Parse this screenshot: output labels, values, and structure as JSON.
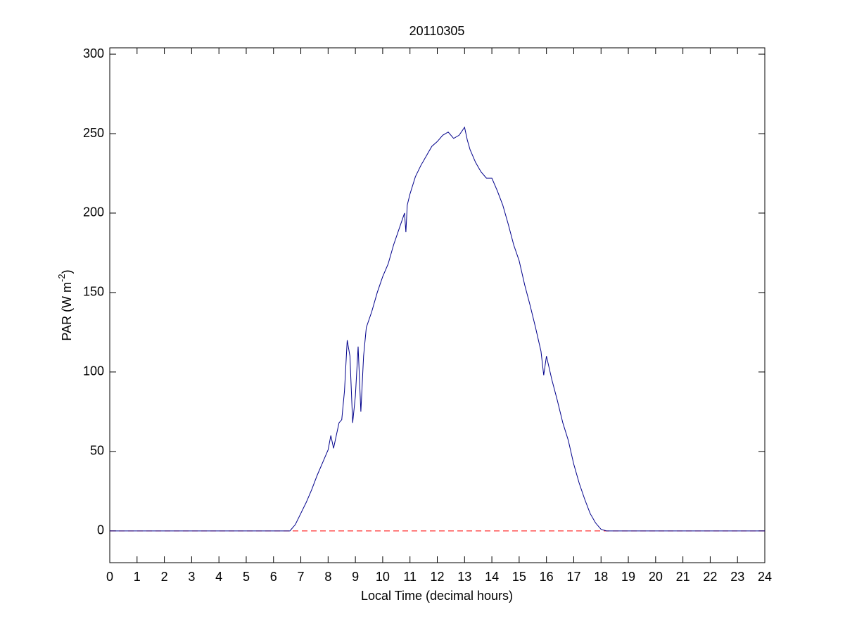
{
  "chart_data": {
    "type": "line",
    "title": "20110305",
    "xlabel": "Local Time (decimal hours)",
    "ylabel": {
      "text": "PAR (W m",
      "superscript": "-2",
      "suffix": ")"
    },
    "x": [
      0,
      6.4,
      6.6,
      6.8,
      7.0,
      7.2,
      7.4,
      7.6,
      7.8,
      8.0,
      8.1,
      8.2,
      8.3,
      8.4,
      8.5,
      8.6,
      8.7,
      8.8,
      8.9,
      9.0,
      9.1,
      9.2,
      9.3,
      9.4,
      9.6,
      9.8,
      10.0,
      10.2,
      10.4,
      10.6,
      10.8,
      10.85,
      10.9,
      11.0,
      11.2,
      11.4,
      11.6,
      11.8,
      12.0,
      12.2,
      12.4,
      12.6,
      12.8,
      13.0,
      13.1,
      13.2,
      13.4,
      13.6,
      13.8,
      14.0,
      14.2,
      14.4,
      14.6,
      14.8,
      15.0,
      15.2,
      15.4,
      15.6,
      15.8,
      15.9,
      16.0,
      16.2,
      16.4,
      16.6,
      16.8,
      17.0,
      17.2,
      17.4,
      17.6,
      17.8,
      18.0,
      18.2,
      18.4,
      24
    ],
    "series": [
      {
        "color": "#00008b",
        "values": [
          0,
          0,
          0,
          4,
          11,
          18,
          26,
          35,
          43,
          51,
          60,
          52,
          60,
          68,
          70,
          88,
          120,
          110,
          68,
          85,
          116,
          75,
          110,
          128,
          138,
          150,
          160,
          168,
          180,
          190,
          200,
          188,
          205,
          212,
          223,
          230,
          236,
          242,
          245,
          249,
          251,
          247,
          249,
          254,
          246,
          240,
          232,
          226,
          222,
          222,
          214,
          205,
          193,
          180,
          170,
          155,
          142,
          128,
          113,
          98,
          110,
          95,
          82,
          68,
          57,
          42,
          30,
          20,
          11,
          5,
          1,
          0,
          0,
          0
        ]
      }
    ],
    "reference_line": {
      "value": 0,
      "color": "#ff0000"
    },
    "xlim": [
      0,
      24
    ],
    "xticks": [
      0,
      1,
      2,
      3,
      4,
      5,
      6,
      7,
      8,
      9,
      10,
      11,
      12,
      13,
      14,
      15,
      16,
      17,
      18,
      19,
      20,
      21,
      22,
      23,
      24
    ],
    "ylim": [
      -20,
      304
    ],
    "yticks": [
      0,
      50,
      100,
      150,
      200,
      250,
      300
    ]
  }
}
